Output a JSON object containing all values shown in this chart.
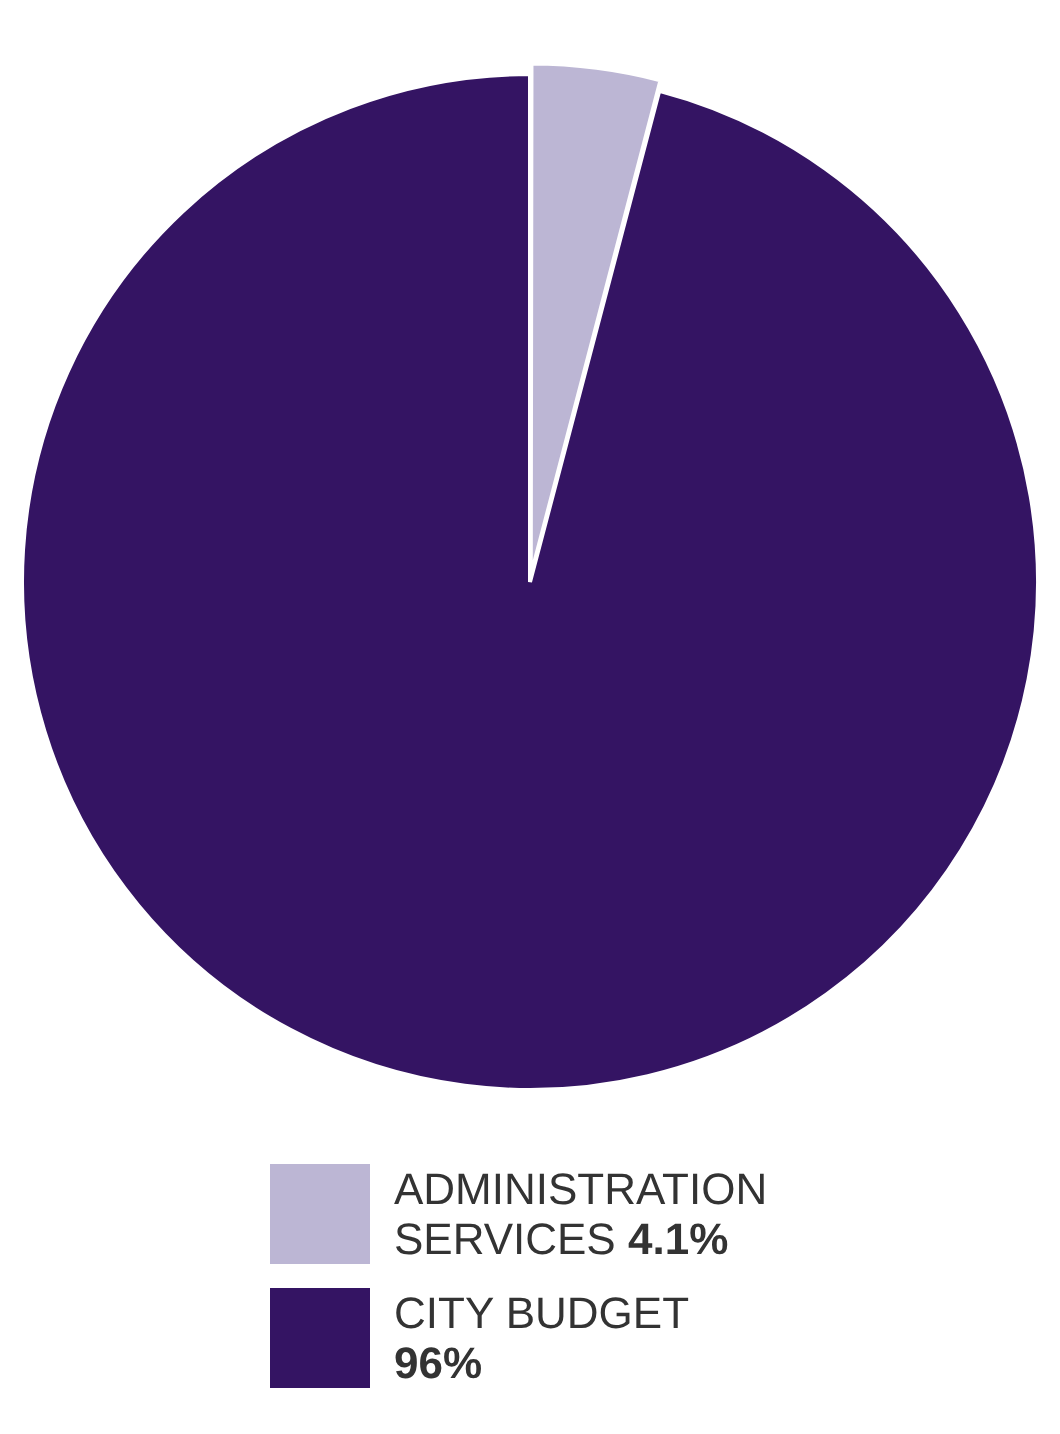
{
  "chart_data": {
    "type": "pie",
    "categories": [
      "ADMINISTRATION SERVICES",
      "CITY BUDGET"
    ],
    "values": [
      4.1,
      96
    ],
    "colors": [
      "#bcb6d4",
      "#341463"
    ],
    "value_labels": [
      "4.1%",
      "96%"
    ],
    "legend": "bottom"
  }
}
